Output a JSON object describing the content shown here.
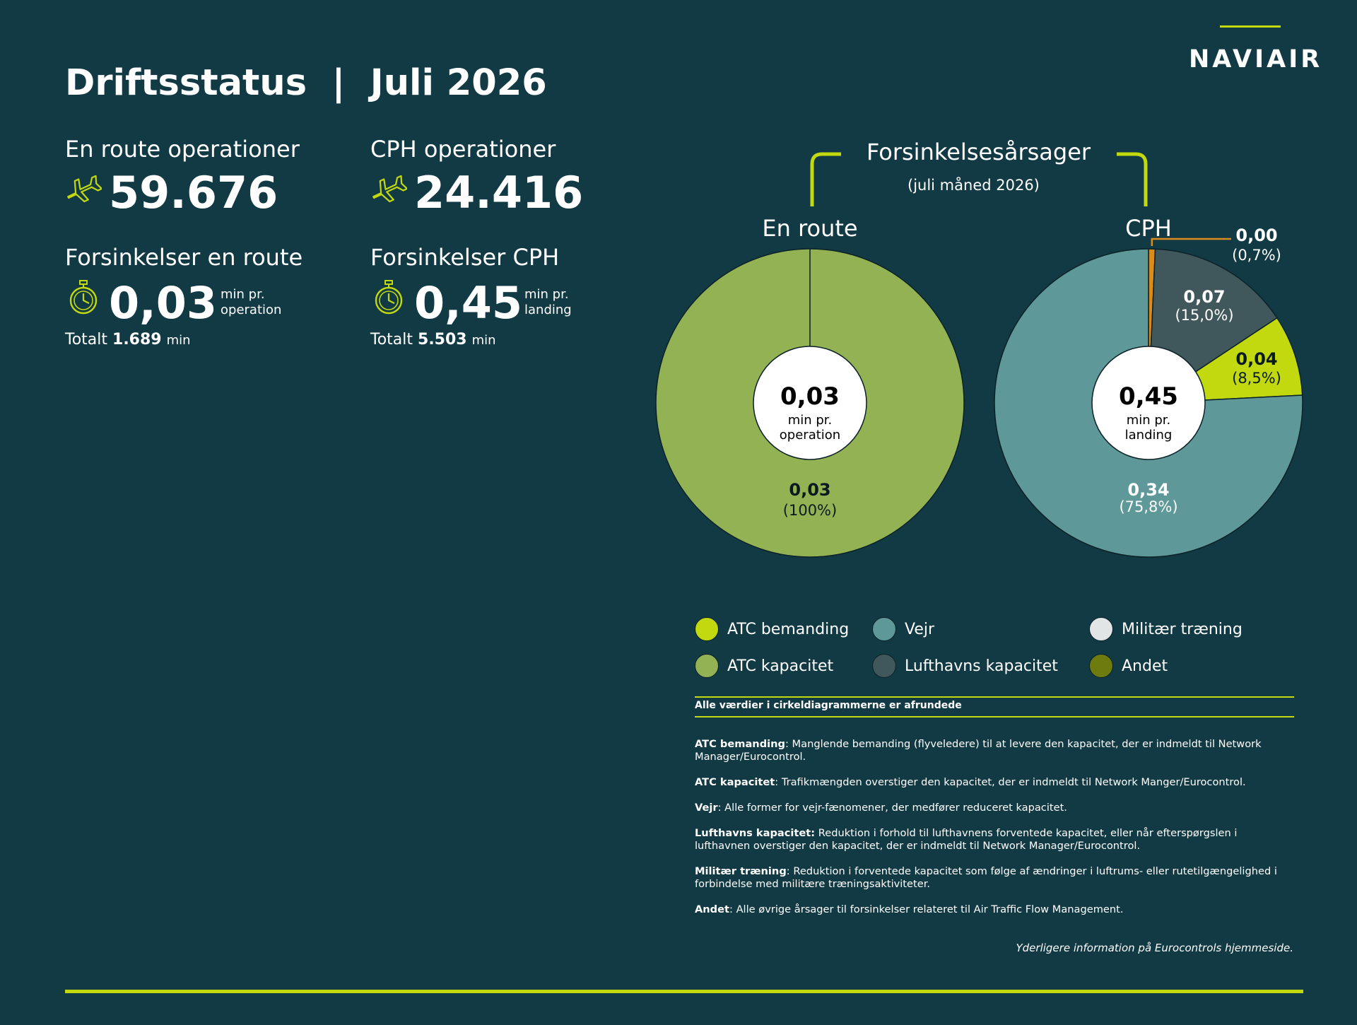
{
  "header": {
    "title": "Driftsstatus  |  Juli 2026",
    "logo": "NAVIAIR"
  },
  "stats": {
    "enroute_ops": {
      "label": "En route operationer",
      "value": "59.676",
      "icon": "airplane-icon"
    },
    "cph_ops": {
      "label": "CPH operationer",
      "value": "24.416",
      "icon": "airplane-icon"
    },
    "enroute_delay": {
      "label": "Forsinkelser en route",
      "value": "0,03",
      "unit_line1": "min pr.",
      "unit_line2": "operation",
      "total_prefix": "Totalt",
      "total_value": "1.689",
      "total_unit": "min",
      "icon": "stopwatch-icon"
    },
    "cph_delay": {
      "label": "Forsinkelser CPH",
      "value": "0,45",
      "unit_line1": "min pr.",
      "unit_line2": "landing",
      "total_prefix": "Totalt",
      "total_value": "5.503",
      "total_unit": "min",
      "icon": "stopwatch-icon"
    }
  },
  "causes": {
    "title": "Forsinkelsesårsager",
    "subtitle": "(juli måned 2026)"
  },
  "colors": {
    "background": "#123a44",
    "accent": "#c2d80f",
    "atc_bemanding": "#c2d80f",
    "atc_kapacitet": "#93b254",
    "vejr": "#5e9898",
    "lufthavns_kapacitet": "#40575b",
    "militaer": "#e1e5e6",
    "andet": "#6e7c0f",
    "callout": "#d98c1c"
  },
  "chart_data": [
    {
      "type": "pie",
      "title": "En route",
      "center_value": "0,03",
      "center_line1": "min pr.",
      "center_line2": "operation",
      "slices": [
        {
          "category": "ATC kapacitet",
          "value": 0.03,
          "percent": 100,
          "value_label": "0,03",
          "percent_label": "(100%)",
          "color": "#93b254"
        }
      ]
    },
    {
      "type": "pie",
      "title": "CPH",
      "center_value": "0,45",
      "center_line1": "min pr.",
      "center_line2": "landing",
      "slices": [
        {
          "category": "Andet",
          "value": 0.0,
          "percent": 0.7,
          "value_label": "0,00",
          "percent_label": "(0,7%)",
          "color": "#d98c1c"
        },
        {
          "category": "Lufthavns kapacitet",
          "value": 0.07,
          "percent": 15.0,
          "value_label": "0,07",
          "percent_label": "(15,0%)",
          "color": "#40575b"
        },
        {
          "category": "ATC bemanding",
          "value": 0.04,
          "percent": 8.5,
          "value_label": "0,04",
          "percent_label": "(8,5%)",
          "color": "#c2d80f"
        },
        {
          "category": "Vejr",
          "value": 0.34,
          "percent": 75.8,
          "value_label": "0,34",
          "percent_label": "(75,8%)",
          "color": "#5e9898"
        }
      ]
    }
  ],
  "legend": {
    "items": [
      {
        "label": "ATC bemanding",
        "color": "#c2d80f"
      },
      {
        "label": "Vejr",
        "color": "#5e9898"
      },
      {
        "label": "Militær træning",
        "color": "#e1e5e6"
      },
      {
        "label": "ATC kapacitet",
        "color": "#93b254"
      },
      {
        "label": "Lufthavns kapacitet",
        "color": "#40575b"
      },
      {
        "label": "Andet",
        "color": "#6e7c0f"
      }
    ]
  },
  "notes": {
    "rounding": "Alle værdier i cirkeldiagrammerne er afrundede",
    "definitions": [
      {
        "term": "ATC bemanding",
        "sep": ": ",
        "text": "Manglende bemanding (flyveledere) til at levere den kapacitet, der er indmeldt til Network Manager/Eurocontrol."
      },
      {
        "term": "ATC kapacitet",
        "sep": ": ",
        "text": "Trafikmængden overstiger den kapacitet, der er indmeldt til Network Manger/Eurocontrol."
      },
      {
        "term": "Vejr",
        "sep": ": ",
        "text": "Alle former for vejr-fænomener, der medfører reduceret kapacitet."
      },
      {
        "term": "Lufthavns kapacitet:",
        "sep": " ",
        "text": "Reduktion i forhold til lufthavnens forventede kapacitet, eller når efterspørgslen i lufthavnen overstiger den kapacitet, der er indmeldt til Network Manager/Eurocontrol."
      },
      {
        "term": "Militær træning",
        "sep": ": ",
        "text": "Reduktion i forventede kapacitet som følge af ændringer i luftrums- eller rutetilgængelighed i forbindelse med militære træningsaktiviteter."
      },
      {
        "term": "Andet",
        "sep": ": ",
        "text": "Alle øvrige årsager til forsinkelser relateret til Air Traffic Flow Management."
      }
    ],
    "more_info": "Yderligere information på Eurocontrols hjemmeside."
  }
}
